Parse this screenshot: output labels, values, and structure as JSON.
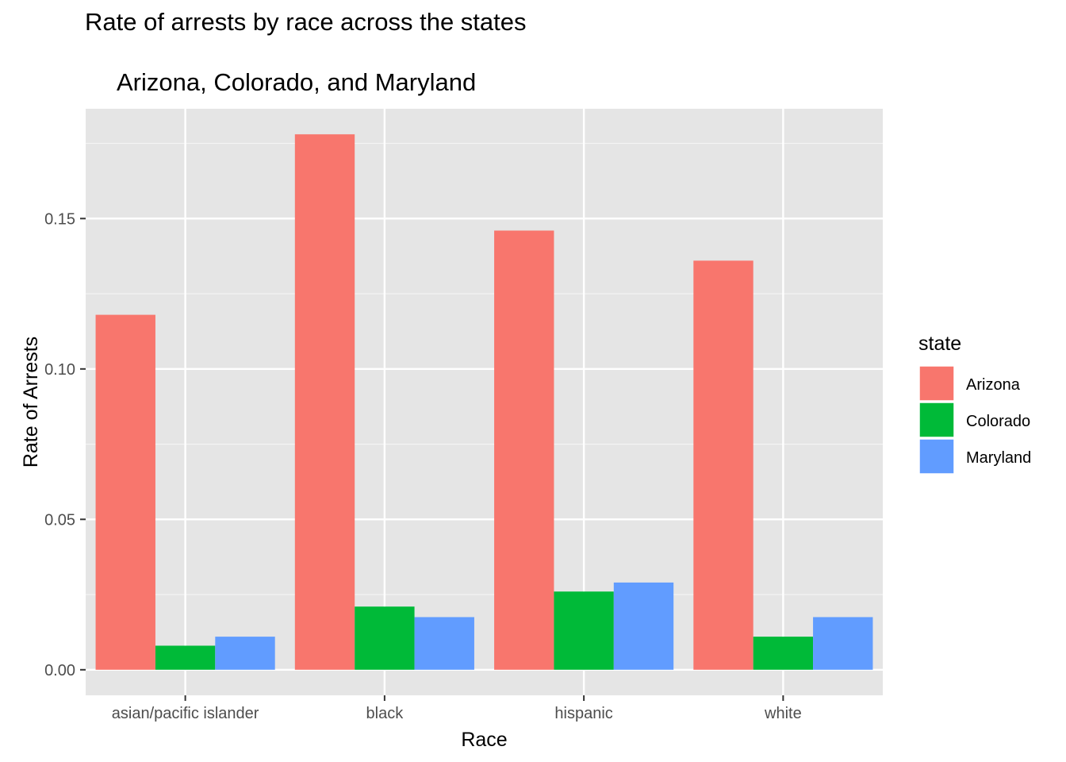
{
  "chart_data": {
    "type": "bar",
    "title": "Rate of arrests by race across the states",
    "subtitle": "Arizona, Colorado, and Maryland",
    "xlabel": "Race",
    "ylabel": "Rate of Arrests",
    "categories": [
      "asian/pacific islander",
      "black",
      "hispanic",
      "white"
    ],
    "series": [
      {
        "name": "Arizona",
        "color": "#F8766D",
        "values": [
          0.118,
          0.178,
          0.146,
          0.136
        ]
      },
      {
        "name": "Colorado",
        "color": "#00BA38",
        "values": [
          0.008,
          0.021,
          0.026,
          0.011
        ]
      },
      {
        "name": "Maryland",
        "color": "#619CFF",
        "values": [
          0.011,
          0.0175,
          0.029,
          0.0175
        ]
      }
    ],
    "ylim": [
      -0.0085,
      0.1865
    ],
    "yticks": [
      0.0,
      0.05,
      0.1,
      0.15
    ],
    "ytick_labels": [
      "0.00",
      "0.05",
      "0.10",
      "0.15"
    ],
    "legend": {
      "title": "state",
      "position": "right"
    },
    "grid": true,
    "panel_background": "#E5E5E5"
  }
}
